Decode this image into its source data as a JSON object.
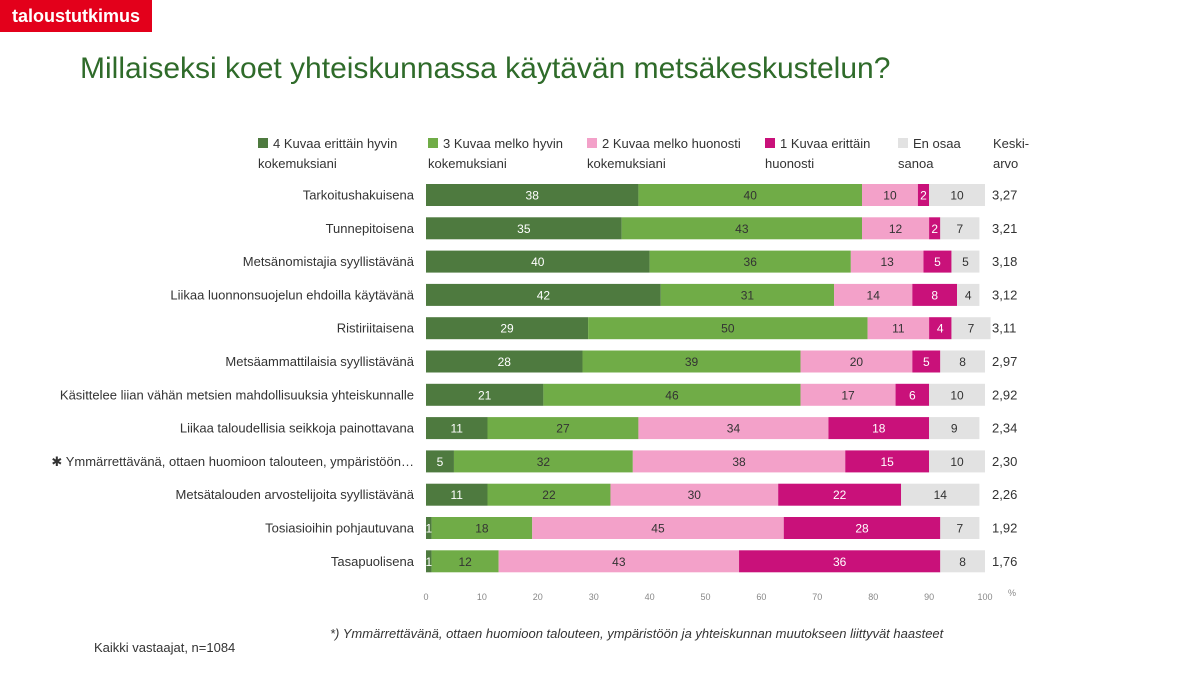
{
  "brand": "taloustutkimus",
  "title": "Millaiseksi koet yhteiskunnassa käytävän metsäkeskustelun?",
  "colors": {
    "brand": "#e3001b",
    "title": "#2f6b2a"
  },
  "mean_header": "Keski-arvo",
  "footnote": "*) Ymmärrettävänä, ottaen huomioon talouteen, ympäristöön ja yhteiskunnan muutokseen liittyvät haasteet",
  "base_note": "Kaikki vastaajat, n=1084",
  "chart_data": {
    "type": "bar",
    "orientation": "horizontal",
    "stacked": true,
    "unit": "%",
    "xlim": [
      0,
      100
    ],
    "x_ticks": [
      "0",
      "10",
      "20",
      "30",
      "40",
      "50",
      "60",
      "70",
      "80",
      "90",
      "100"
    ],
    "legend_position": "top",
    "categories": [
      "Tarkoitushakuisena",
      "Tunnepitoisena",
      "Metsänomistajia syyllistävänä",
      "Liikaa luonnonsuojelun ehdoilla käytävänä",
      "Ristiriitaisena",
      "Metsäammattilaisia syyllistävänä",
      "Käsittelee liian vähän metsien mahdollisuuksia yhteiskunnalle",
      "Liikaa taloudellisia seikkoja painottavana",
      "✱ Ymmärrettävänä, ottaen huomioon talouteen, ympäristöön…",
      "Metsätalouden arvostelijoita syyllistävänä",
      "Tosiasioihin pohjautuvana",
      "Tasapuolisena"
    ],
    "series": [
      {
        "name": "4 Kuvaa erittäin hyvin kokemuksiani",
        "color": "#4e7a3f",
        "text_color": "#ffffff",
        "values": [
          38,
          35,
          40,
          42,
          29,
          28,
          21,
          11,
          5,
          11,
          1,
          1
        ]
      },
      {
        "name": "3 Kuvaa melko hyvin kokemuksiani",
        "color": "#70ac47",
        "text_color": "#333333",
        "values": [
          40,
          43,
          36,
          31,
          50,
          39,
          46,
          27,
          32,
          22,
          18,
          12
        ]
      },
      {
        "name": "2 Kuvaa melko huonosti kokemuksiani",
        "color": "#f3a1c9",
        "text_color": "#333333",
        "values": [
          10,
          12,
          13,
          14,
          11,
          20,
          17,
          34,
          38,
          30,
          45,
          43
        ]
      },
      {
        "name": "1 Kuvaa erittäin huonosti",
        "color": "#c9117a",
        "text_color": "#ffffff",
        "values": [
          2,
          2,
          5,
          8,
          4,
          5,
          6,
          18,
          15,
          22,
          28,
          36
        ]
      },
      {
        "name": "En osaa sanoa",
        "color": "#e2e2e2",
        "text_color": "#333333",
        "values": [
          10,
          7,
          5,
          4,
          7,
          8,
          10,
          9,
          10,
          14,
          7,
          8
        ]
      }
    ],
    "means": [
      "3,27",
      "3,21",
      "3,18",
      "3,12",
      "3,11",
      "2,97",
      "2,92",
      "2,34",
      "2,30",
      "2,26",
      "1,92",
      "1,76"
    ]
  }
}
